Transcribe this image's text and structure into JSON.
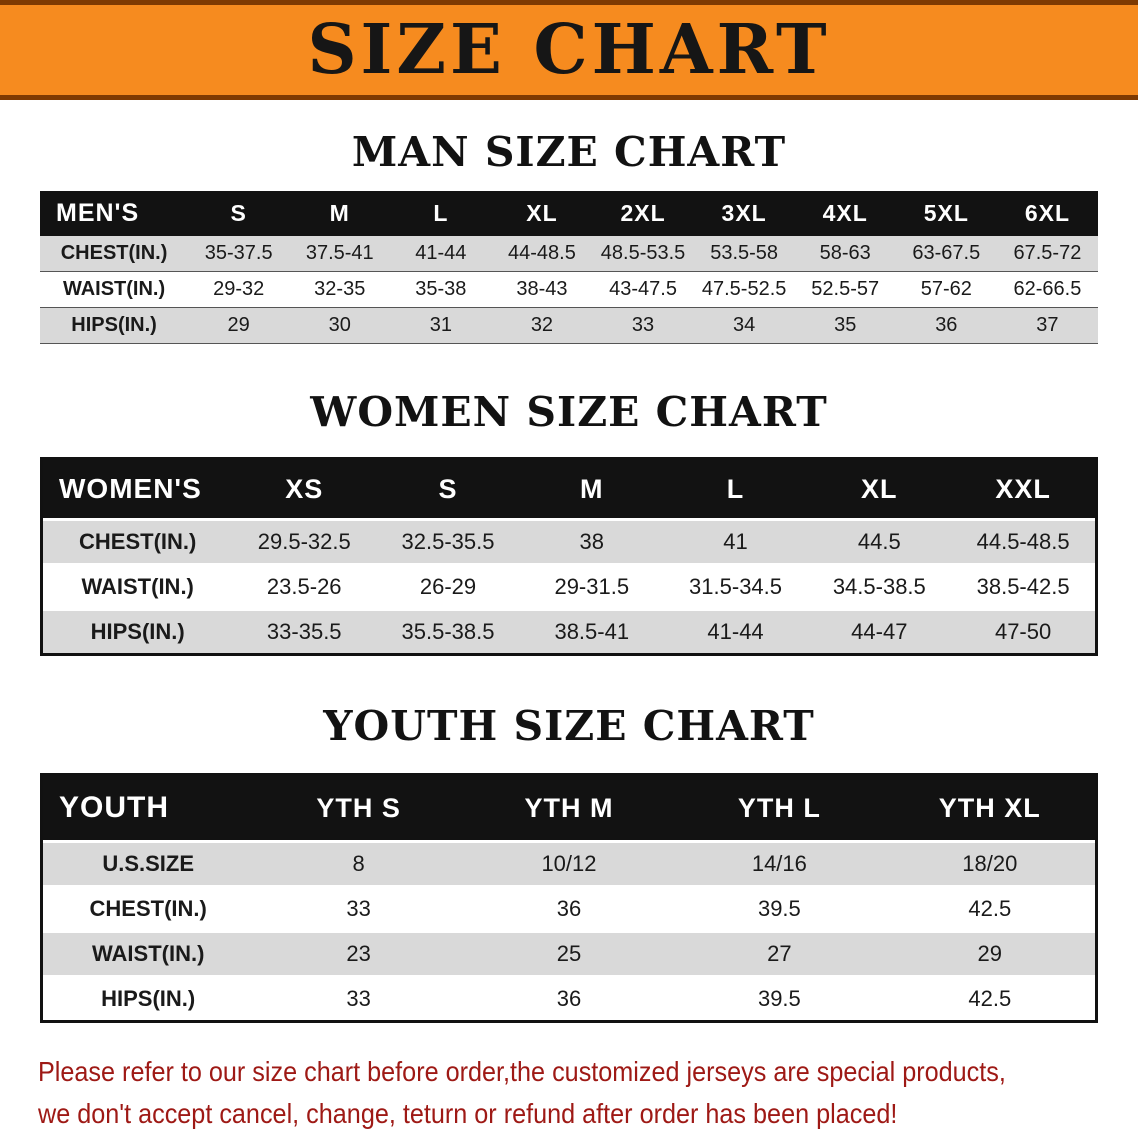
{
  "banner": {
    "title": "SIZE CHART",
    "bg_color": "#f68b1f",
    "edge_color": "#7e3a02"
  },
  "sections": [
    {
      "heading": "MAN SIZE CHART",
      "table": {
        "corner_label": "MEN'S",
        "columns": [
          "S",
          "M",
          "L",
          "XL",
          "2XL",
          "3XL",
          "4XL",
          "5XL",
          "6XL"
        ],
        "rows": [
          {
            "label": "CHEST(IN.)",
            "values": [
              "35-37.5",
              "37.5-41",
              "41-44",
              "44-48.5",
              "48.5-53.5",
              "53.5-58",
              "58-63",
              "63-67.5",
              "67.5-72"
            ]
          },
          {
            "label": "WAIST(IN.)",
            "values": [
              "29-32",
              "32-35",
              "35-38",
              "38-43",
              "43-47.5",
              "47.5-52.5",
              "52.5-57",
              "57-62",
              "62-66.5"
            ]
          },
          {
            "label": "HIPS(IN.)",
            "values": [
              "29",
              "30",
              "31",
              "32",
              "33",
              "34",
              "35",
              "36",
              "37"
            ]
          }
        ]
      }
    },
    {
      "heading": "WOMEN SIZE CHART",
      "table": {
        "corner_label": "WOMEN'S",
        "columns": [
          "XS",
          "S",
          "M",
          "L",
          "XL",
          "XXL"
        ],
        "rows": [
          {
            "label": "CHEST(IN.)",
            "values": [
              "29.5-32.5",
              "32.5-35.5",
              "38",
              "41",
              "44.5",
              "44.5-48.5"
            ]
          },
          {
            "label": "WAIST(IN.)",
            "values": [
              "23.5-26",
              "26-29",
              "29-31.5",
              "31.5-34.5",
              "34.5-38.5",
              "38.5-42.5"
            ]
          },
          {
            "label": "HIPS(IN.)",
            "values": [
              "33-35.5",
              "35.5-38.5",
              "38.5-41",
              "41-44",
              "44-47",
              "47-50"
            ]
          }
        ]
      }
    },
    {
      "heading": "YOUTH SIZE CHART",
      "table": {
        "corner_label": "YOUTH",
        "columns": [
          "YTH S",
          "YTH M",
          "YTH L",
          "YTH XL"
        ],
        "rows": [
          {
            "label": "U.S.SIZE",
            "values": [
              "8",
              "10/12",
              "14/16",
              "18/20"
            ]
          },
          {
            "label": "CHEST(IN.)",
            "values": [
              "33",
              "36",
              "39.5",
              "42.5"
            ]
          },
          {
            "label": "WAIST(IN.)",
            "values": [
              "23",
              "25",
              "27",
              "29"
            ]
          },
          {
            "label": "HIPS(IN.)",
            "values": [
              "33",
              "36",
              "39.5",
              "42.5"
            ]
          }
        ]
      }
    }
  ],
  "footer": {
    "line1": "Please refer to our size chart before order,the customized jerseys are special products,",
    "line2": "we don't accept cancel, change, teturn or refund after order has been placed!",
    "color": "#9e1915"
  }
}
